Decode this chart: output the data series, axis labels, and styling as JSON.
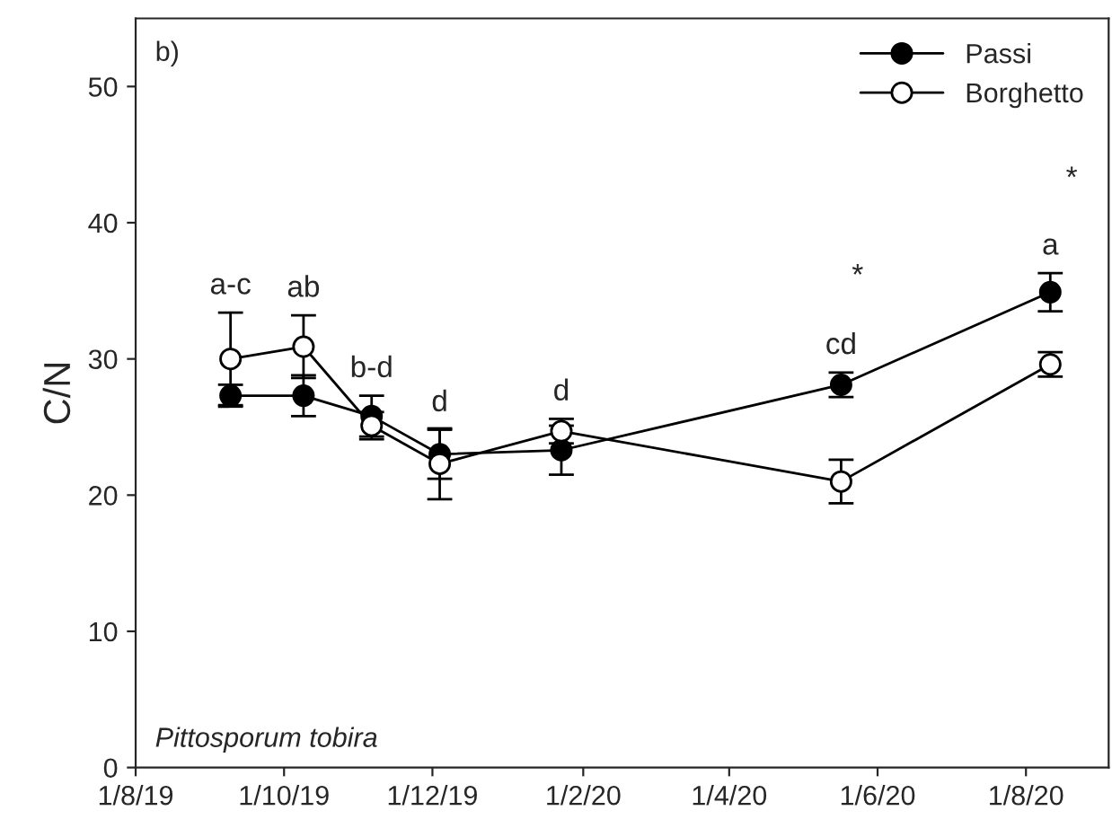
{
  "chart_data": {
    "type": "line",
    "ylabel": "C/N",
    "x": [
      "2019-09-09",
      "2019-10-09",
      "2019-11-06",
      "2019-12-04",
      "2020-01-23",
      "2020-05-17",
      "2020-08-11"
    ],
    "series": [
      {
        "name": "Passi",
        "color": "#000000",
        "values": [
          27.3,
          27.3,
          25.8,
          23.0,
          23.3,
          28.1,
          34.9
        ],
        "errors": [
          0.8,
          1.5,
          1.5,
          1.8,
          1.8,
          0.9,
          1.4
        ]
      },
      {
        "name": "Borghetto",
        "color": "#ffffff",
        "values": [
          30.0,
          30.9,
          25.1,
          22.3,
          24.7,
          21.0,
          29.6
        ],
        "errors": [
          3.4,
          2.3,
          1.0,
          2.6,
          0.9,
          1.6,
          0.9
        ]
      }
    ],
    "xlim": [
      "2019-08-01",
      "2020-09-04"
    ],
    "xticks": [
      {
        "value": "2019-08-01",
        "label": "1/8/19"
      },
      {
        "value": "2019-10-01",
        "label": "1/10/19"
      },
      {
        "value": "2019-12-01",
        "label": "1/12/19"
      },
      {
        "value": "2020-02-01",
        "label": "1/2/20"
      },
      {
        "value": "2020-04-01",
        "label": "1/4/20"
      },
      {
        "value": "2020-06-01",
        "label": "1/6/20"
      },
      {
        "value": "2020-08-01",
        "label": "1/8/20"
      }
    ],
    "ylim": [
      0,
      55
    ],
    "yticks": [
      0,
      10,
      20,
      30,
      40,
      50
    ],
    "marker": "circle",
    "line_style": "solid",
    "grid": false,
    "legend": "top right",
    "annotations": [
      "b)",
      "Pittosporum tobira",
      {
        "text": "a-c",
        "x": "2019-09-09",
        "y": 30.0
      },
      {
        "text": "ab",
        "x": "2019-10-09",
        "y": 30.9
      },
      {
        "text": "b-d",
        "x": "2019-11-06",
        "y": 25.8
      },
      {
        "text": "d",
        "x": "2019-12-04",
        "y": 23.0
      },
      {
        "text": "d",
        "x": "2020-01-23",
        "y": 24.7
      },
      {
        "text": "cd",
        "x": "2020-05-17",
        "y": 28.1
      },
      {
        "text": "a",
        "x": "2020-08-11",
        "y": 34.9
      },
      "*",
      "*"
    ]
  }
}
